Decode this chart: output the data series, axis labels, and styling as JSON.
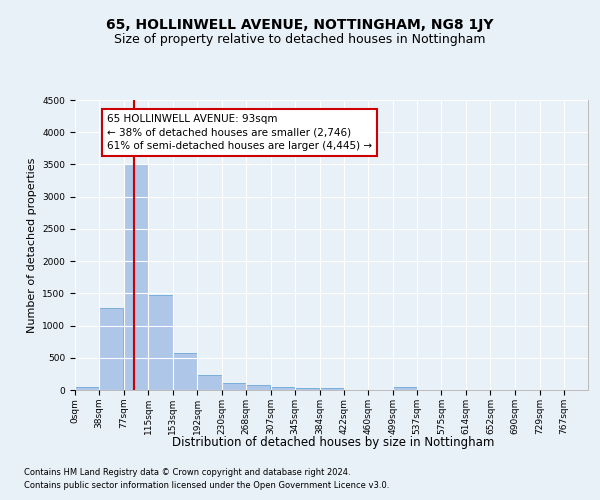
{
  "title": "65, HOLLINWELL AVENUE, NOTTINGHAM, NG8 1JY",
  "subtitle": "Size of property relative to detached houses in Nottingham",
  "xlabel": "Distribution of detached houses by size in Nottingham",
  "ylabel": "Number of detached properties",
  "footer_line1": "Contains HM Land Registry data © Crown copyright and database right 2024.",
  "footer_line2": "Contains public sector information licensed under the Open Government Licence v3.0.",
  "bin_edges": [
    0,
    38,
    77,
    115,
    153,
    192,
    230,
    268,
    307,
    345,
    384,
    422,
    460,
    499,
    537,
    575,
    614,
    652,
    690,
    729,
    767
  ],
  "bar_heights": [
    50,
    1280,
    3500,
    1470,
    580,
    240,
    115,
    80,
    50,
    30,
    30,
    0,
    0,
    50,
    0,
    0,
    0,
    0,
    0,
    0
  ],
  "bar_color": "#aec6e8",
  "bar_edge_color": "#5a9fd4",
  "vline_x": 93,
  "vline_color": "#cc0000",
  "annotation_line1": "65 HOLLINWELL AVENUE: 93sqm",
  "annotation_line2": "← 38% of detached houses are smaller (2,746)",
  "annotation_line3": "61% of semi-detached houses are larger (4,445) →",
  "annotation_box_color": "#cc0000",
  "annotation_facecolor": "white",
  "ylim": [
    0,
    4500
  ],
  "yticks": [
    0,
    500,
    1000,
    1500,
    2000,
    2500,
    3000,
    3500,
    4000,
    4500
  ],
  "bg_color": "#e8f0f8",
  "axes_bg_color": "#e8f0f8",
  "grid_color": "#ffffff",
  "title_fontsize": 10,
  "subtitle_fontsize": 9,
  "tick_fontsize": 6.5,
  "ylabel_fontsize": 8,
  "xlabel_fontsize": 8.5,
  "annotation_fontsize": 7.5,
  "footer_fontsize": 6
}
